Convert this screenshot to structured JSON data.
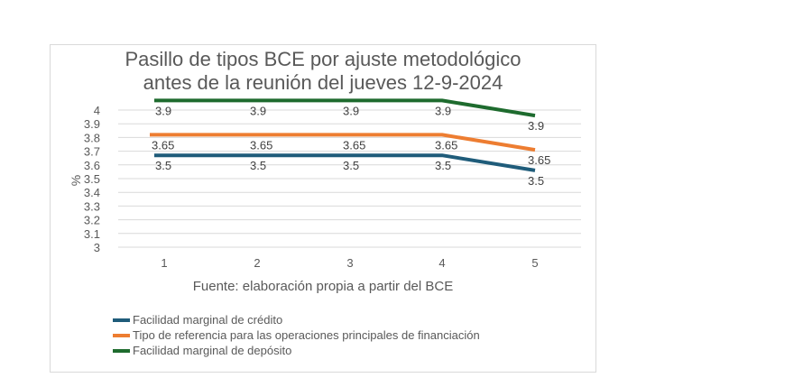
{
  "chart_data": {
    "type": "line",
    "title": "Pasillo de tipos BCE por ajuste metodológico antes de la reunión del jueves 12-9-2024",
    "title_lines": [
      "Pasillo de tipos BCE por ajuste metodológico",
      "antes de la reunión del jueves 12-9-2024"
    ],
    "xlabel": "Fuente: elaboración propia a partir del BCE",
    "ylabel": "%",
    "categories": [
      "1",
      "2",
      "3",
      "4",
      "5"
    ],
    "y_ticks": [
      "4",
      "3.9",
      "3.8",
      "3.7",
      "3.6",
      "3.5",
      "3.4",
      "3.3",
      "3.2",
      "3.1",
      "3"
    ],
    "ylim": [
      3,
      4
    ],
    "grid": true,
    "legend_position": "bottom",
    "series": [
      {
        "name": "Facilidad marginal de crédito",
        "color": "#1f5c7a",
        "values": [
          3.5,
          3.5,
          3.5,
          3.5,
          3.5
        ],
        "plotted_y": [
          3.67,
          3.67,
          3.67,
          3.67,
          3.56
        ],
        "labels": [
          "3.5",
          "3.5",
          "3.5",
          "3.5",
          "3.5"
        ]
      },
      {
        "name": "Tipo de referencia para las operaciones principales de financiación",
        "color": "#ed7d31",
        "values": [
          3.65,
          3.65,
          3.65,
          3.65,
          3.65
        ],
        "plotted_y": [
          3.82,
          3.82,
          3.82,
          3.82,
          3.71
        ],
        "labels": [
          "3.65",
          "3.65",
          "3.65",
          "3.65",
          "3.65"
        ]
      },
      {
        "name": "Facilidad marginal de depósito",
        "color": "#1e6b2e",
        "values": [
          3.9,
          3.9,
          3.9,
          3.9,
          3.9
        ],
        "plotted_y": [
          4.07,
          4.07,
          4.07,
          4.07,
          3.96
        ],
        "labels": [
          "3.9",
          "3.9",
          "3.9",
          "3.9",
          "3.9"
        ]
      }
    ]
  },
  "colors": {
    "text": "#595959",
    "grid": "#d9d9d9",
    "border": "#d9d9d9"
  }
}
